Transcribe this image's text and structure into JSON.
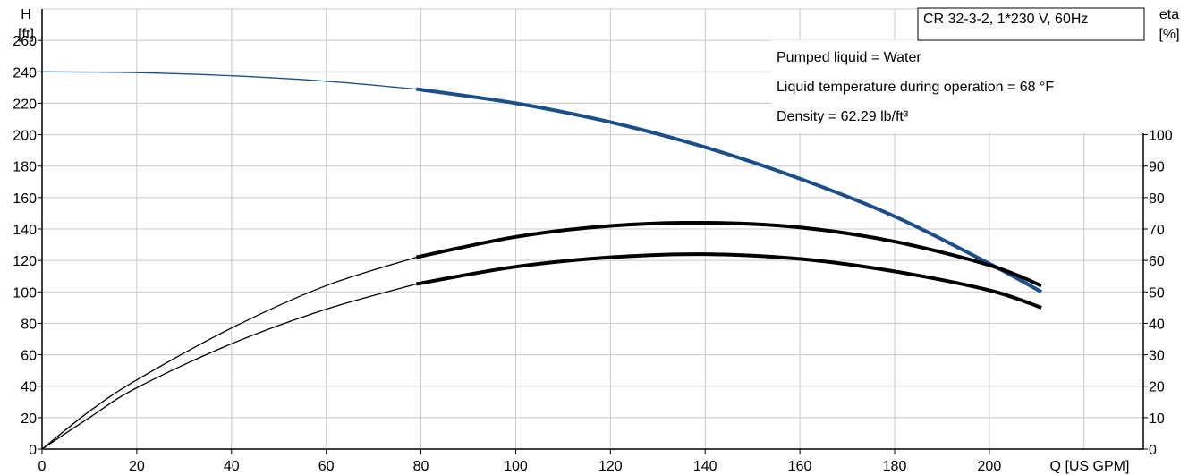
{
  "chart_data": {
    "type": "line",
    "title": "CR 32-3-2, 1*230 V, 60Hz",
    "info_lines": [
      "Pumped liquid = Water",
      "Liquid temperature during operation = 68 °F",
      "Density = 62.29 lb/ft³"
    ],
    "xlabel": "Q [US GPM]",
    "y_left_label": [
      "H",
      "[ft]"
    ],
    "y_right_label": [
      "eta",
      "[%]"
    ],
    "xlim": [
      0,
      230
    ],
    "ylim_left": [
      0,
      280
    ],
    "ylim_right": [
      0,
      140
    ],
    "x_ticks": [
      0,
      20,
      40,
      60,
      80,
      100,
      120,
      140,
      160,
      180,
      200
    ],
    "y_left_ticks": [
      0,
      20,
      40,
      60,
      80,
      100,
      120,
      140,
      160,
      180,
      200,
      220,
      240,
      260
    ],
    "y_right_ticks": [
      0,
      10,
      20,
      30,
      40,
      50,
      60,
      70,
      80,
      90,
      100
    ],
    "grid": true,
    "colors": {
      "head": "#1a4f8a",
      "efficiency": "#000000",
      "grid": "#c8c8c8"
    },
    "series": [
      {
        "axis": "left",
        "color": "#1a4f8a",
        "thin_points": [
          [
            0,
            240
          ],
          [
            20,
            239.5
          ],
          [
            40,
            237.5
          ],
          [
            60,
            234
          ],
          [
            79,
            229
          ]
        ],
        "bold_points": [
          [
            79,
            229
          ],
          [
            100,
            220
          ],
          [
            120,
            208
          ],
          [
            140,
            192
          ],
          [
            160,
            172
          ],
          [
            180,
            148
          ],
          [
            200,
            118
          ],
          [
            211,
            100
          ]
        ]
      },
      {
        "axis": "right",
        "color": "#000000",
        "thin_points": [
          [
            0,
            0
          ],
          [
            10,
            12
          ],
          [
            20,
            22
          ],
          [
            40,
            38.5
          ],
          [
            60,
            52
          ],
          [
            79,
            61
          ]
        ],
        "bold_points": [
          [
            79,
            61
          ],
          [
            100,
            67.5
          ],
          [
            120,
            71
          ],
          [
            140,
            72
          ],
          [
            160,
            70.5
          ],
          [
            180,
            66
          ],
          [
            200,
            58.5
          ],
          [
            211,
            52
          ]
        ]
      },
      {
        "axis": "right",
        "color": "#000000",
        "thin_points": [
          [
            0,
            0
          ],
          [
            10,
            10
          ],
          [
            20,
            19.5
          ],
          [
            40,
            33.5
          ],
          [
            60,
            44.5
          ],
          [
            79,
            52.5
          ]
        ],
        "bold_points": [
          [
            79,
            52.5
          ],
          [
            100,
            58
          ],
          [
            120,
            61
          ],
          [
            140,
            62
          ],
          [
            160,
            60.5
          ],
          [
            180,
            56.5
          ],
          [
            200,
            50.5
          ],
          [
            211,
            45
          ]
        ]
      }
    ]
  }
}
